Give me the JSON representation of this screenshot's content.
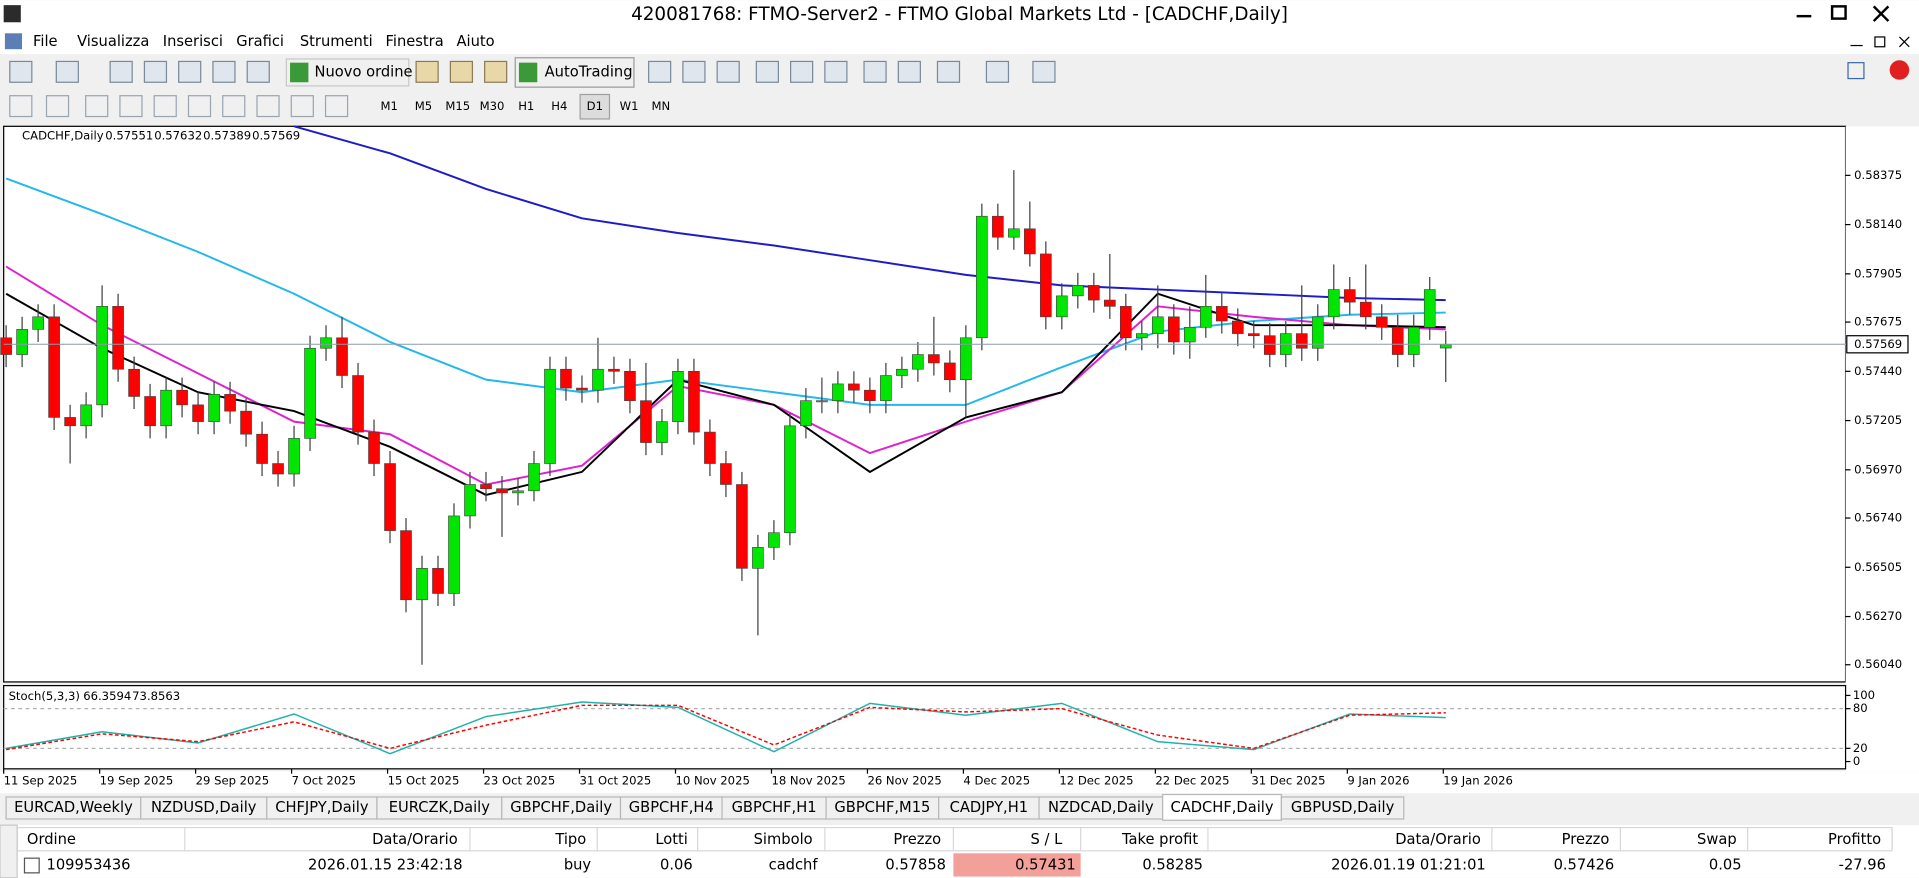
{
  "window": {
    "title": "420081768: FTMO-Server2 - FTMO Global Markets Ltd - [CADCHF,Daily]",
    "menu": [
      "File",
      "Visualizza",
      "Inserisci",
      "Grafici",
      "Strumenti",
      "Finestra",
      "Aiuto"
    ],
    "new_order": "Nuovo ordine",
    "autotrading": "AutoTrading",
    "timeframes": [
      "M1",
      "M5",
      "M15",
      "M30",
      "H1",
      "H4",
      "D1",
      "W1",
      "MN"
    ],
    "active_timeframe": "D1"
  },
  "chart_data": {
    "type": "candlestick",
    "symbol": "CADCHF,Daily",
    "categories": [
      "11 Sep 2025",
      null,
      null,
      null,
      null,
      null,
      "19 Sep 2025",
      null,
      null,
      null,
      null,
      null,
      "29 Sep 2025",
      null,
      null,
      null,
      null,
      null,
      "7 Oct 2025",
      null,
      null,
      null,
      null,
      null,
      "15 Oct 2025",
      null,
      null,
      null,
      null,
      null,
      "23 Oct 2025",
      null,
      null,
      null,
      null,
      null,
      "31 Oct 2025",
      null,
      null,
      null,
      null,
      null,
      "10 Nov 2025",
      null,
      null,
      null,
      null,
      null,
      "18 Nov 2025",
      null,
      null,
      null,
      null,
      null,
      "26 Nov 2025",
      null,
      null,
      null,
      null,
      null,
      "4 Dec 2025",
      null,
      null,
      null,
      null,
      null,
      "12 Dec 2025",
      null,
      null,
      null,
      null,
      null,
      "22 Dec 2025",
      null,
      null,
      null,
      null,
      null,
      "31 Dec 2025",
      null,
      null,
      null,
      null,
      null,
      "9 Jan 2026",
      null,
      null,
      null,
      null,
      null,
      "19 Jan 2026"
    ],
    "open": [
      0.576,
      0.5752,
      0.5764,
      0.577,
      0.5722,
      0.5718,
      0.5728,
      0.5775,
      0.5745,
      0.5732,
      0.5718,
      0.5735,
      0.5728,
      0.572,
      0.5733,
      0.5725,
      0.5714,
      0.57,
      0.5695,
      0.5712,
      0.5755,
      0.576,
      0.5742,
      0.5715,
      0.57,
      0.5668,
      0.5635,
      0.565,
      0.5638,
      0.5675,
      0.569,
      0.5688,
      0.5686,
      0.5687,
      0.57,
      0.5745,
      0.5736,
      0.5735,
      0.5745,
      0.5744,
      0.573,
      0.571,
      0.572,
      0.5744,
      0.5715,
      0.57,
      0.569,
      0.565,
      0.566,
      0.5667,
      0.5718,
      0.573,
      0.573,
      0.5738,
      0.5735,
      0.573,
      0.5742,
      0.5745,
      0.5752,
      0.5748,
      0.574,
      0.576,
      0.5818,
      0.5808,
      0.5812,
      0.58,
      0.577,
      0.578,
      0.5785,
      0.5778,
      0.5775,
      0.576,
      0.5762,
      0.577,
      0.5758,
      0.5765,
      0.5775,
      0.5768,
      0.5762,
      0.5761,
      0.5752,
      0.5762,
      0.5755,
      0.577,
      0.5783,
      0.5777,
      0.577,
      0.5765,
      0.5752,
      0.5765,
      0.57551
    ],
    "high": [
      0.5766,
      0.577,
      0.5776,
      0.5776,
      0.5728,
      0.5734,
      0.5785,
      0.5781,
      0.5751,
      0.5738,
      0.5741,
      0.5741,
      0.5734,
      0.5739,
      0.5739,
      0.5731,
      0.572,
      0.5706,
      0.5718,
      0.5761,
      0.5766,
      0.577,
      0.5748,
      0.5721,
      0.5706,
      0.5674,
      0.5656,
      0.5656,
      0.5681,
      0.5696,
      0.5696,
      0.5694,
      0.5693,
      0.5706,
      0.5751,
      0.5751,
      0.5742,
      0.576,
      0.5751,
      0.575,
      0.5748,
      0.5726,
      0.575,
      0.575,
      0.5721,
      0.5706,
      0.5696,
      0.5666,
      0.5673,
      0.5724,
      0.5736,
      0.5741,
      0.5744,
      0.5744,
      0.5741,
      0.5748,
      0.5751,
      0.5758,
      0.577,
      0.5754,
      0.5766,
      0.5824,
      0.5824,
      0.584,
      0.5825,
      0.5806,
      0.5786,
      0.5791,
      0.5791,
      0.58,
      0.5781,
      0.5768,
      0.5785,
      0.5776,
      0.5775,
      0.579,
      0.5782,
      0.5774,
      0.5768,
      0.5767,
      0.5768,
      0.5785,
      0.5776,
      0.5795,
      0.5789,
      0.5795,
      0.5776,
      0.5771,
      0.5771,
      0.5789,
      0.57632
    ],
    "low": [
      0.5746,
      0.5746,
      0.5758,
      0.5716,
      0.57,
      0.5712,
      0.5722,
      0.5739,
      0.5726,
      0.5712,
      0.5712,
      0.5722,
      0.5714,
      0.5714,
      0.5719,
      0.5708,
      0.5694,
      0.5689,
      0.5689,
      0.5706,
      0.5749,
      0.5736,
      0.5709,
      0.5694,
      0.5662,
      0.5629,
      0.5604,
      0.5632,
      0.5632,
      0.5669,
      0.5682,
      0.5665,
      0.568,
      0.5682,
      0.5694,
      0.573,
      0.5729,
      0.5729,
      0.5738,
      0.5724,
      0.5704,
      0.5704,
      0.5714,
      0.5709,
      0.5694,
      0.5684,
      0.5644,
      0.5618,
      0.5654,
      0.5661,
      0.5712,
      0.5724,
      0.5724,
      0.5729,
      0.5724,
      0.5724,
      0.5736,
      0.5739,
      0.5742,
      0.5734,
      0.5722,
      0.5754,
      0.5802,
      0.5802,
      0.5794,
      0.5764,
      0.5764,
      0.5774,
      0.5772,
      0.5769,
      0.5754,
      0.5754,
      0.5755,
      0.5752,
      0.575,
      0.576,
      0.5762,
      0.5756,
      0.5755,
      0.5746,
      0.5746,
      0.5749,
      0.5749,
      0.5764,
      0.5771,
      0.5764,
      0.5759,
      0.5746,
      0.5746,
      0.5759,
      0.57389
    ],
    "close": [
      0.5752,
      0.5764,
      0.577,
      0.5722,
      0.5718,
      0.5728,
      0.5775,
      0.5745,
      0.5732,
      0.5718,
      0.5735,
      0.5728,
      0.572,
      0.5733,
      0.5725,
      0.5714,
      0.57,
      0.5695,
      0.5712,
      0.5755,
      0.576,
      0.5742,
      0.5715,
      0.57,
      0.5668,
      0.5635,
      0.565,
      0.5638,
      0.5675,
      0.569,
      0.5688,
      0.5686,
      0.5687,
      0.57,
      0.5745,
      0.5736,
      0.5735,
      0.5745,
      0.5744,
      0.573,
      0.571,
      0.572,
      0.5744,
      0.5715,
      0.57,
      0.569,
      0.565,
      0.566,
      0.5667,
      0.5718,
      0.573,
      0.573,
      0.5738,
      0.5735,
      0.573,
      0.5742,
      0.5745,
      0.5752,
      0.5748,
      0.574,
      0.576,
      0.5818,
      0.5808,
      0.5812,
      0.58,
      0.577,
      0.578,
      0.5785,
      0.5778,
      0.5775,
      0.576,
      0.5762,
      0.577,
      0.5758,
      0.5765,
      0.5775,
      0.5768,
      0.5762,
      0.5761,
      0.5752,
      0.5762,
      0.5755,
      0.577,
      0.5783,
      0.5777,
      0.577,
      0.5765,
      0.5752,
      0.5765,
      0.5783,
      0.57569
    ],
    "up_color": "#00e600",
    "down_color": "#ff0000",
    "ylim": [
      0.55958,
      0.58609
    ],
    "yticks": [
      0.58375,
      {
        "value": 0.5814,
        "label": "0.58140"
      },
      0.57905,
      0.57675,
      {
        "value": 0.5744,
        "label": "0.57440"
      },
      0.57205,
      {
        "value": 0.5697,
        "label": "0.56970"
      },
      {
        "value": 0.5674,
        "label": "0.56740"
      },
      0.56505,
      {
        "value": 0.5627,
        "label": "0.56270"
      },
      {
        "value": 0.5604,
        "label": "0.56040"
      }
    ],
    "moving_averages": [
      {
        "color": "#1c1cc8",
        "x": [
          18,
          24,
          30,
          36,
          42,
          48,
          54,
          60,
          66,
          72,
          78,
          84,
          90
        ],
        "values": [
          0.5861,
          0.5848,
          0.5831,
          0.5817,
          0.581,
          0.5804,
          0.5797,
          0.579,
          0.5785,
          0.5783,
          0.5781,
          0.5779,
          0.5778
        ]
      },
      {
        "color": "#22b8ee",
        "x": [
          0,
          6,
          12,
          18,
          24,
          30,
          36,
          42,
          48,
          54,
          60,
          66,
          72,
          78,
          84,
          90
        ],
        "values": [
          0.5836,
          0.5819,
          0.5801,
          0.5781,
          0.5758,
          0.574,
          0.5734,
          0.574,
          0.5734,
          0.5728,
          0.5728,
          0.5746,
          0.5763,
          0.5768,
          0.5771,
          0.5772
        ]
      },
      {
        "color": "#e020d0",
        "x": [
          0,
          6,
          12,
          18,
          24,
          30,
          36,
          42,
          48,
          54,
          60,
          66,
          72,
          78,
          84,
          90
        ],
        "values": [
          0.5794,
          0.5766,
          0.5743,
          0.572,
          0.5714,
          0.569,
          0.5699,
          0.5737,
          0.5728,
          0.5705,
          0.572,
          0.5734,
          0.5775,
          0.577,
          0.5766,
          0.5764
        ]
      },
      {
        "color": "#000000",
        "x": [
          0,
          6,
          12,
          18,
          24,
          30,
          36,
          42,
          48,
          54,
          60,
          66,
          72,
          78,
          84,
          90
        ],
        "values": [
          0.5781,
          0.5755,
          0.5734,
          0.5725,
          0.5708,
          0.5685,
          0.5696,
          0.574,
          0.5728,
          0.5696,
          0.5722,
          0.5734,
          0.5781,
          0.5766,
          0.5766,
          0.5765
        ]
      }
    ],
    "indicator": {
      "type": "line",
      "name": "Stoch(5,3,3)",
      "x": [
        0,
        6,
        12,
        18,
        24,
        30,
        36,
        42,
        48,
        54,
        60,
        66,
        72,
        78,
        84,
        90
      ],
      "series": [
        {
          "color": "#20b2aa",
          "values": [
            20,
            45,
            28,
            72,
            12,
            68,
            90,
            82,
            15,
            88,
            70,
            88,
            30,
            18,
            72,
            66.3594
          ]
        },
        {
          "color": "#ff0000",
          "dashed": true,
          "values": [
            18,
            42,
            30,
            60,
            20,
            55,
            85,
            85,
            25,
            82,
            75,
            80,
            40,
            20,
            70,
            73.8563
          ]
        }
      ],
      "levels": [
        80,
        20
      ],
      "ylim": [
        -11,
        113
      ],
      "yticks": [
        100,
        80,
        20,
        0
      ]
    }
  },
  "tabs": [
    "EURCAD,Weekly",
    "NZDUSD,Daily",
    "CHFJPY,Daily",
    "EURCZK,Daily",
    "GBPCHF,Daily",
    "GBPCHF,H4",
    "GBPCHF,H1",
    "GBPCHF,M15",
    "CADJPY,H1",
    "NZDCAD,Daily",
    "CADCHF,Daily",
    "GBPUSD,Daily"
  ],
  "active_tab": "CADCHF,Daily",
  "orders": {
    "columns": [
      "Ordine",
      "Data/Orario",
      "Tipo",
      "Lotti",
      "Simbolo",
      "Prezzo",
      "S / L",
      "Take profit",
      "Data/Orario",
      "Prezzo",
      "Swap",
      "Profitto"
    ],
    "rows": [
      [
        "109953436",
        "2026.01.15 23:42:18",
        "buy",
        "0.06",
        "cadchf",
        "0.57858",
        "0.57431",
        "0.58285",
        "2026.01.19 01:21:01",
        "0.57426",
        "0.05",
        "-27.96"
      ]
    ]
  }
}
